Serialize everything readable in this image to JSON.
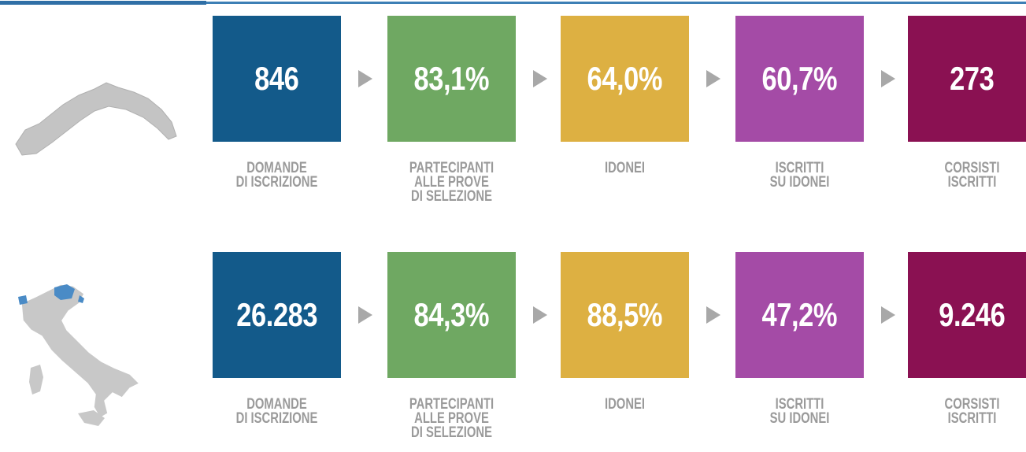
{
  "rows": [
    {
      "steps": [
        {
          "value": "846",
          "label": [
            "DOMANDE",
            "DI ISCRIZIONE"
          ]
        },
        {
          "value": "83,1%",
          "label": [
            "PARTECIPANTI",
            "ALLE PROVE",
            "DI SELEZIONE"
          ]
        },
        {
          "value": "64,0%",
          "label": [
            "IDONEI"
          ]
        },
        {
          "value": "60,7%",
          "label": [
            "ISCRITTI",
            "SU IDONEI"
          ]
        },
        {
          "value": "273",
          "label": [
            "CORSISTI",
            "ISCRITTI"
          ]
        }
      ]
    },
    {
      "steps": [
        {
          "value": "26.283",
          "label": [
            "DOMANDE",
            "DI ISCRIZIONE"
          ]
        },
        {
          "value": "84,3%",
          "label": [
            "PARTECIPANTI",
            "ALLE PROVE",
            "DI SELEZIONE"
          ]
        },
        {
          "value": "88,5%",
          "label": [
            "IDONEI"
          ]
        },
        {
          "value": "47,2%",
          "label": [
            "ISCRITTI",
            "SU IDONEI"
          ]
        },
        {
          "value": "9.246",
          "label": [
            "CORSISTI",
            "ISCRITTI"
          ]
        }
      ]
    }
  ]
}
